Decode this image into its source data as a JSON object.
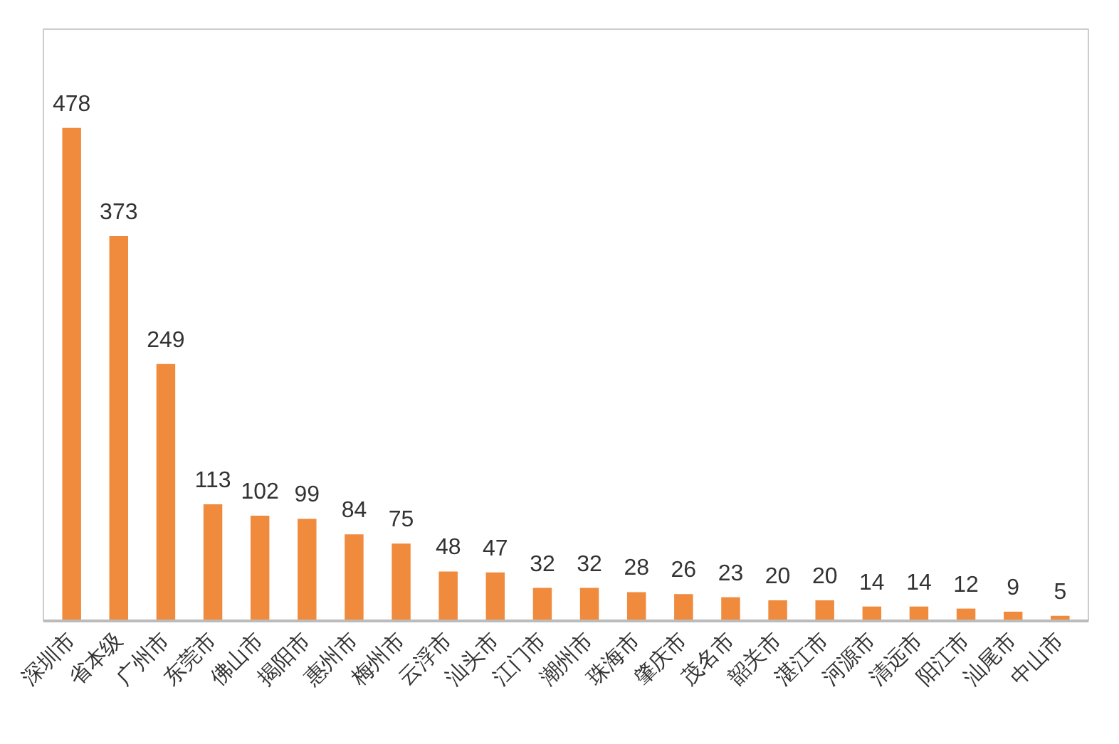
{
  "chart_data": {
    "type": "bar",
    "categories": [
      "深圳市",
      "省本级",
      "广州市",
      "东莞市",
      "佛山市",
      "揭阳市",
      "惠州市",
      "梅州市",
      "云浮市",
      "汕头市",
      "江门市",
      "潮州市",
      "珠海市",
      "肇庆市",
      "茂名市",
      "韶关市",
      "湛江市",
      "河源市",
      "清远市",
      "阳江市",
      "汕尾市",
      "中山市"
    ],
    "values": [
      478,
      373,
      249,
      113,
      102,
      99,
      84,
      75,
      48,
      47,
      32,
      32,
      28,
      26,
      23,
      20,
      20,
      14,
      14,
      12,
      9,
      5
    ],
    "color": "#f08a3c",
    "data_labels": true
  }
}
